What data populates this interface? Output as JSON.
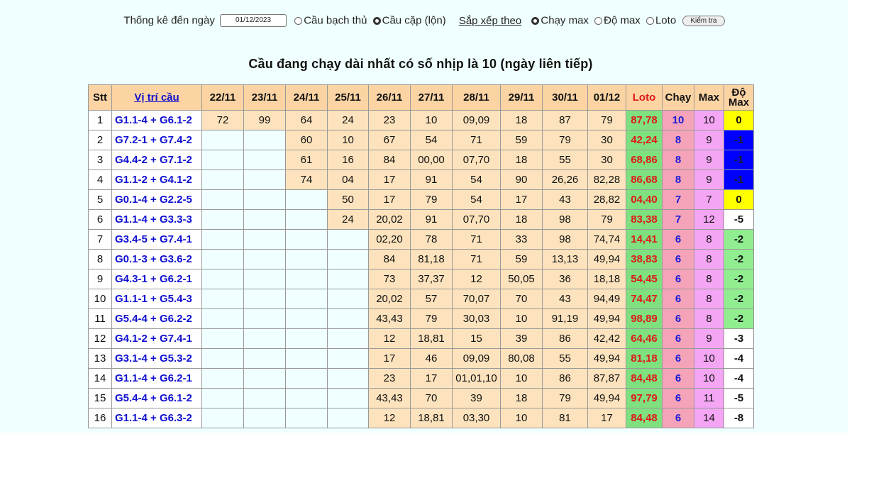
{
  "form": {
    "label": "Thống kê đến ngày",
    "date": "01/12/2023",
    "options": [
      "Cầu bạch thủ",
      "Cầu cặp (lộn)"
    ],
    "sort_label": "Sắp xếp theo",
    "sort_options": [
      "Chạy max",
      "Độ max",
      "Loto"
    ],
    "button": "Kiểm tra"
  },
  "title": "Cầu đang chạy dài nhất có số nhịp là 10 (ngày liên tiếp)",
  "table": {
    "headers": [
      "Stt",
      "Vị trí cầu",
      "22/11",
      "23/11",
      "24/11",
      "25/11",
      "26/11",
      "27/11",
      "28/11",
      "29/11",
      "30/11",
      "01/12",
      "Loto",
      "Chạy",
      "Max",
      "Độ Max"
    ],
    "rows": [
      {
        "stt": 1,
        "position": "G1.1-4 + G6.1-2",
        "days": [
          "72",
          "99",
          "64",
          "24",
          "23",
          "10",
          "09,09",
          "18",
          "87",
          "79"
        ],
        "loto": "87,78",
        "run": 10,
        "max": 10,
        "delta": 0
      },
      {
        "stt": 2,
        "position": "G7.2-1 + G7.4-2",
        "days": [
          null,
          null,
          "60",
          "10",
          "67",
          "54",
          "71",
          "59",
          "79",
          "30"
        ],
        "loto": "42,24",
        "run": 8,
        "max": 9,
        "delta": -1
      },
      {
        "stt": 3,
        "position": "G4.4-2 + G7.1-2",
        "days": [
          null,
          null,
          "61",
          "16",
          "84",
          "00,00",
          "07,70",
          "18",
          "55",
          "30"
        ],
        "loto": "68,86",
        "run": 8,
        "max": 9,
        "delta": -1
      },
      {
        "stt": 4,
        "position": "G1.1-2 + G4.1-2",
        "days": [
          null,
          null,
          "74",
          "04",
          "17",
          "91",
          "54",
          "90",
          "26,26",
          "82,28"
        ],
        "loto": "86,68",
        "run": 8,
        "max": 9,
        "delta": -1
      },
      {
        "stt": 5,
        "position": "G0.1-4 + G2.2-5",
        "days": [
          null,
          null,
          null,
          "50",
          "17",
          "79",
          "54",
          "17",
          "43",
          "28,82"
        ],
        "loto": "04,40",
        "run": 7,
        "max": 7,
        "delta": 0
      },
      {
        "stt": 6,
        "position": "G1.1-4 + G3.3-3",
        "days": [
          null,
          null,
          null,
          "24",
          "20,02",
          "91",
          "07,70",
          "18",
          "98",
          "79"
        ],
        "loto": "83,38",
        "run": 7,
        "max": 12,
        "delta": -5
      },
      {
        "stt": 7,
        "position": "G3.4-5 + G7.4-1",
        "days": [
          null,
          null,
          null,
          null,
          "02,20",
          "78",
          "71",
          "33",
          "98",
          "74,74"
        ],
        "loto": "14,41",
        "run": 6,
        "max": 8,
        "delta": -2
      },
      {
        "stt": 8,
        "position": "G0.1-3 + G3.6-2",
        "days": [
          null,
          null,
          null,
          null,
          "84",
          "81,18",
          "71",
          "59",
          "13,13",
          "49,94"
        ],
        "loto": "38,83",
        "run": 6,
        "max": 8,
        "delta": -2
      },
      {
        "stt": 9,
        "position": "G4.3-1 + G6.2-1",
        "days": [
          null,
          null,
          null,
          null,
          "73",
          "37,37",
          "12",
          "50,05",
          "36",
          "18,18"
        ],
        "loto": "54,45",
        "run": 6,
        "max": 8,
        "delta": -2
      },
      {
        "stt": 10,
        "position": "G1.1-1 + G5.4-3",
        "days": [
          null,
          null,
          null,
          null,
          "20,02",
          "57",
          "70,07",
          "70",
          "43",
          "94,49"
        ],
        "loto": "74,47",
        "run": 6,
        "max": 8,
        "delta": -2
      },
      {
        "stt": 11,
        "position": "G5.4-4 + G6.2-2",
        "days": [
          null,
          null,
          null,
          null,
          "43,43",
          "79",
          "30,03",
          "10",
          "91,19",
          "49,94"
        ],
        "loto": "98,89",
        "run": 6,
        "max": 8,
        "delta": -2
      },
      {
        "stt": 12,
        "position": "G4.1-2 + G7.4-1",
        "days": [
          null,
          null,
          null,
          null,
          "12",
          "18,81",
          "15",
          "39",
          "86",
          "42,42"
        ],
        "loto": "64,46",
        "run": 6,
        "max": 9,
        "delta": -3
      },
      {
        "stt": 13,
        "position": "G3.1-4 + G5.3-2",
        "days": [
          null,
          null,
          null,
          null,
          "17",
          "46",
          "09,09",
          "80,08",
          "55",
          "49,94"
        ],
        "loto": "81,18",
        "run": 6,
        "max": 10,
        "delta": -4
      },
      {
        "stt": 14,
        "position": "G1.1-4 + G6.2-1",
        "days": [
          null,
          null,
          null,
          null,
          "23",
          "17",
          "01,01,10",
          "10",
          "86",
          "87,87"
        ],
        "loto": "84,48",
        "run": 6,
        "max": 10,
        "delta": -4
      },
      {
        "stt": 15,
        "position": "G5.4-4 + G6.1-2",
        "days": [
          null,
          null,
          null,
          null,
          "43,43",
          "70",
          "39",
          "18",
          "79",
          "49,94"
        ],
        "loto": "97,79",
        "run": 6,
        "max": 11,
        "delta": -5
      },
      {
        "stt": 16,
        "position": "G1.1-4 + G6.3-2",
        "days": [
          null,
          null,
          null,
          null,
          "12",
          "18,81",
          "03,30",
          "10",
          "81",
          "17"
        ],
        "loto": "84,48",
        "run": 6,
        "max": 14,
        "delta": -8
      }
    ]
  }
}
